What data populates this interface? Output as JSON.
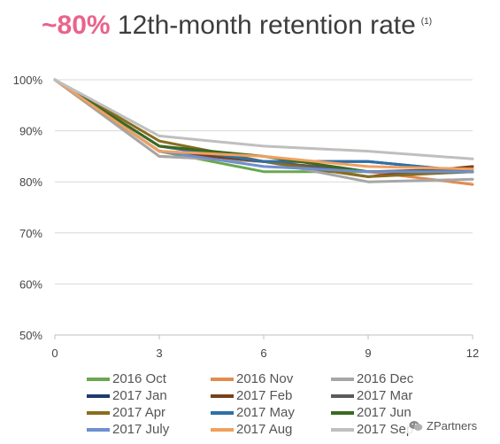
{
  "headline": {
    "highlight": "~80%",
    "text": "12th-month retention rate",
    "note": "(1)"
  },
  "watermark": {
    "text": "ZPartners",
    "icon": "wechat-icon"
  },
  "chart_data": {
    "type": "line",
    "title": "~80% 12th-month retention rate",
    "x": [
      0,
      3,
      6,
      9,
      12
    ],
    "xticks": [
      "0",
      "3",
      "6",
      "9",
      "12"
    ],
    "yticks": [
      "50%",
      "60%",
      "70%",
      "80%",
      "90%",
      "100%"
    ],
    "ylim": [
      50,
      100
    ],
    "xlim": [
      0,
      12
    ],
    "grid": "horizontal",
    "legend_position": "bottom",
    "series": [
      {
        "name": "2016 Oct",
        "color": "#6aa84f",
        "values": [
          100,
          86,
          82,
          82,
          82
        ]
      },
      {
        "name": "2016 Nov",
        "color": "#e38b4f",
        "values": [
          100,
          85,
          84,
          82,
          79.5
        ]
      },
      {
        "name": "2016 Dec",
        "color": "#a6a6a6",
        "values": [
          100,
          85,
          84,
          80,
          80.5
        ]
      },
      {
        "name": "2017 Jan",
        "color": "#1f3a6e",
        "values": [
          100,
          86,
          84,
          84,
          82
        ]
      },
      {
        "name": "2017 Feb",
        "color": "#7b3f18",
        "values": [
          100,
          86,
          84,
          81,
          83
        ]
      },
      {
        "name": "2017 Mar",
        "color": "#5a5a5a",
        "values": [
          100,
          87,
          84,
          82,
          82.5
        ]
      },
      {
        "name": "2017 Apr",
        "color": "#8a6d1f",
        "values": [
          100,
          88,
          84,
          81,
          82
        ]
      },
      {
        "name": "2017 May",
        "color": "#2e6fa8",
        "values": [
          100,
          87,
          84,
          84,
          82
        ]
      },
      {
        "name": "2017 Jun",
        "color": "#3b6a1e",
        "values": [
          100,
          87,
          85,
          82,
          82
        ]
      },
      {
        "name": "2017 July",
        "color": "#6f8fd0",
        "values": [
          100,
          86,
          83,
          82,
          82
        ]
      },
      {
        "name": "2017 Aug",
        "color": "#f0a060",
        "values": [
          100,
          86,
          85,
          83,
          82.5
        ]
      },
      {
        "name": "2017 Sep",
        "color": "#bfbfbf",
        "values": [
          100,
          89,
          87,
          86,
          84.5
        ]
      }
    ]
  }
}
